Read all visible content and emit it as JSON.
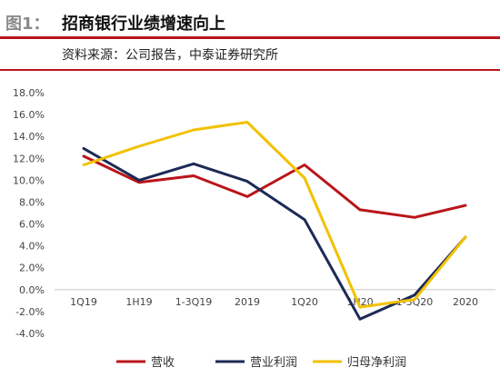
{
  "header": {
    "fig_label": "图1：",
    "title": "招商银行业绩增速向上",
    "source": "资料来源：公司报告，中泰证券研究所"
  },
  "colors": {
    "rule": "#b9151b",
    "revenue": "#b9151b",
    "operating_profit": "#1c2a55",
    "net_profit": "#f2c100"
  },
  "chart_data": {
    "type": "line",
    "title": "",
    "xlabel": "",
    "ylabel": "",
    "categories": [
      "1Q19",
      "1H19",
      "1-3Q19",
      "2019",
      "1Q20",
      "1H20",
      "1-3Q20",
      "2020"
    ],
    "ylim": [
      -4,
      18
    ],
    "yticks": [
      "18.0%",
      "16.0%",
      "14.0%",
      "12.0%",
      "10.0%",
      "8.0%",
      "6.0%",
      "4.0%",
      "2.0%",
      "0.0%",
      "-2.0%",
      "-4.0%"
    ],
    "legend_position": "bottom",
    "series": [
      {
        "name": "营收",
        "values": [
          12.2,
          9.8,
          10.4,
          8.5,
          11.4,
          7.3,
          6.6,
          7.7
        ]
      },
      {
        "name": "营业利润",
        "values": [
          12.9,
          10.0,
          11.5,
          9.9,
          6.4,
          -2.7,
          -0.5,
          4.8
        ]
      },
      {
        "name": "归母净利润",
        "values": [
          11.4,
          13.1,
          14.6,
          15.3,
          10.2,
          -1.6,
          -0.9,
          4.8
        ]
      }
    ]
  }
}
